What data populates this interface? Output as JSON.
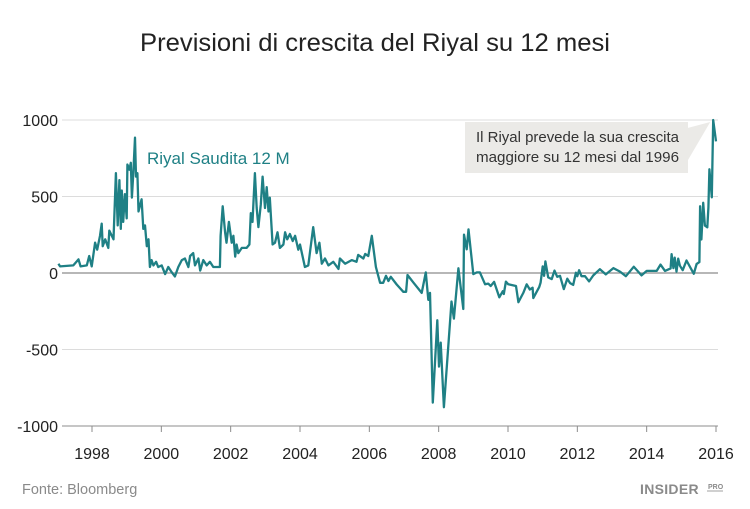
{
  "chart_data": {
    "type": "line",
    "title": "Previsioni di crescita del Riyal su 12 mesi",
    "xlabel": "",
    "ylabel": "",
    "xlim": [
      1997.0,
      2016.05
    ],
    "ylim": [
      -1000,
      1000
    ],
    "x_ticks": [
      1998,
      2000,
      2002,
      2004,
      2006,
      2008,
      2010,
      2012,
      2014,
      2016
    ],
    "x_tick_labels": [
      "1998",
      "2000",
      "2002",
      "2004",
      "2006",
      "2008",
      "2010",
      "2012",
      "2014",
      "2016"
    ],
    "y_ticks": [
      1000,
      500,
      0,
      -500,
      -1000
    ],
    "y_tick_labels": [
      "1000",
      "500",
      "0",
      "-500",
      "-1000"
    ],
    "grid": "horizontal",
    "series": [
      {
        "name": "Riyal Saudita 12 M",
        "color": "#1f8085",
        "points": [
          [
            1997.03,
            61
          ],
          [
            1997.08,
            43
          ],
          [
            1997.46,
            50
          ],
          [
            1997.61,
            89
          ],
          [
            1997.67,
            43
          ],
          [
            1997.85,
            50
          ],
          [
            1997.92,
            111
          ],
          [
            1997.99,
            43
          ],
          [
            1998.09,
            198
          ],
          [
            1998.15,
            152
          ],
          [
            1998.23,
            243
          ],
          [
            1998.28,
            323
          ],
          [
            1998.31,
            175
          ],
          [
            1998.38,
            220
          ],
          [
            1998.47,
            164
          ],
          [
            1998.5,
            277
          ],
          [
            1998.62,
            220
          ],
          [
            1998.69,
            652
          ],
          [
            1998.74,
            311
          ],
          [
            1998.79,
            607
          ],
          [
            1998.83,
            289
          ],
          [
            1998.86,
            539
          ],
          [
            1998.9,
            334
          ],
          [
            1998.95,
            516
          ],
          [
            1999.0,
            357
          ],
          [
            1999.02,
            709
          ],
          [
            1999.08,
            675
          ],
          [
            1999.12,
            720
          ],
          [
            1999.15,
            493
          ],
          [
            1999.19,
            652
          ],
          [
            1999.24,
            884
          ],
          [
            1999.27,
            630
          ],
          [
            1999.31,
            652
          ],
          [
            1999.34,
            402
          ],
          [
            1999.43,
            482
          ],
          [
            1999.48,
            289
          ],
          [
            1999.53,
            311
          ],
          [
            1999.58,
            175
          ],
          [
            1999.63,
            220
          ],
          [
            1999.67,
            39
          ],
          [
            1999.72,
            84
          ],
          [
            1999.77,
            50
          ],
          [
            1999.85,
            73
          ],
          [
            1999.91,
            39
          ],
          [
            2000.01,
            50
          ],
          [
            2000.11,
            -7
          ],
          [
            2000.2,
            39
          ],
          [
            2000.3,
            5
          ],
          [
            2000.39,
            -23
          ],
          [
            2000.49,
            39
          ],
          [
            2000.59,
            84
          ],
          [
            2000.68,
            95
          ],
          [
            2000.78,
            39
          ],
          [
            2000.83,
            111
          ],
          [
            2000.92,
            130
          ],
          [
            2000.97,
            50
          ],
          [
            2001.07,
            95
          ],
          [
            2001.12,
            16
          ],
          [
            2001.21,
            84
          ],
          [
            2001.31,
            50
          ],
          [
            2001.4,
            73
          ],
          [
            2001.5,
            39
          ],
          [
            2001.69,
            39
          ],
          [
            2001.71,
            243
          ],
          [
            2001.77,
            436
          ],
          [
            2001.84,
            266
          ],
          [
            2001.88,
            198
          ],
          [
            2001.95,
            334
          ],
          [
            2002.03,
            198
          ],
          [
            2002.08,
            243
          ],
          [
            2002.13,
            107
          ],
          [
            2002.17,
            186
          ],
          [
            2002.22,
            130
          ],
          [
            2002.32,
            164
          ],
          [
            2002.46,
            164
          ],
          [
            2002.54,
            186
          ],
          [
            2002.58,
            391
          ],
          [
            2002.63,
            334
          ],
          [
            2002.7,
            652
          ],
          [
            2002.75,
            425
          ],
          [
            2002.8,
            300
          ],
          [
            2002.87,
            448
          ],
          [
            2002.92,
            630
          ],
          [
            2002.99,
            425
          ],
          [
            2003.04,
            561
          ],
          [
            2003.09,
            402
          ],
          [
            2003.13,
            493
          ],
          [
            2003.21,
            186
          ],
          [
            2003.28,
            198
          ],
          [
            2003.35,
            266
          ],
          [
            2003.42,
            164
          ],
          [
            2003.52,
            186
          ],
          [
            2003.57,
            266
          ],
          [
            2003.63,
            220
          ],
          [
            2003.71,
            255
          ],
          [
            2003.79,
            209
          ],
          [
            2003.86,
            243
          ],
          [
            2003.95,
            152
          ],
          [
            2004.0,
            186
          ],
          [
            2004.14,
            39
          ],
          [
            2004.24,
            50
          ],
          [
            2004.38,
            300
          ],
          [
            2004.48,
            130
          ],
          [
            2004.56,
            198
          ],
          [
            2004.63,
            61
          ],
          [
            2004.72,
            95
          ],
          [
            2004.82,
            50
          ],
          [
            2004.96,
            73
          ],
          [
            2005.11,
            27
          ],
          [
            2005.15,
            95
          ],
          [
            2005.3,
            61
          ],
          [
            2005.49,
            84
          ],
          [
            2005.63,
            73
          ],
          [
            2005.68,
            118
          ],
          [
            2005.83,
            95
          ],
          [
            2005.88,
            125
          ],
          [
            2005.97,
            111
          ],
          [
            2006.07,
            243
          ],
          [
            2006.19,
            39
          ],
          [
            2006.31,
            -64
          ],
          [
            2006.4,
            -64
          ],
          [
            2006.48,
            -18
          ],
          [
            2006.55,
            -52
          ],
          [
            2006.62,
            -25
          ],
          [
            2006.79,
            -75
          ],
          [
            2006.98,
            -123
          ],
          [
            2007.06,
            -123
          ],
          [
            2007.1,
            -13
          ],
          [
            2007.27,
            -63
          ],
          [
            2007.51,
            -130
          ],
          [
            2007.63,
            4
          ],
          [
            2007.7,
            -175
          ],
          [
            2007.75,
            -130
          ],
          [
            2007.83,
            -847
          ],
          [
            2007.96,
            -309
          ],
          [
            2008.01,
            -612
          ],
          [
            2008.06,
            -455
          ],
          [
            2008.15,
            -877
          ],
          [
            2008.37,
            -186
          ],
          [
            2008.44,
            -298
          ],
          [
            2008.57,
            31
          ],
          [
            2008.71,
            -235
          ],
          [
            2008.73,
            251
          ],
          [
            2008.81,
            155
          ],
          [
            2008.86,
            285
          ],
          [
            2009.0,
            -7
          ],
          [
            2009.1,
            4
          ],
          [
            2009.19,
            4
          ],
          [
            2009.34,
            -74
          ],
          [
            2009.43,
            -69
          ],
          [
            2009.5,
            -85
          ],
          [
            2009.6,
            -58
          ],
          [
            2009.75,
            -159
          ],
          [
            2009.85,
            -119
          ],
          [
            2009.88,
            -137
          ],
          [
            2009.94,
            -56
          ],
          [
            2010.01,
            -74
          ],
          [
            2010.23,
            -85
          ],
          [
            2010.3,
            -191
          ],
          [
            2010.44,
            -130
          ],
          [
            2010.54,
            -74
          ],
          [
            2010.63,
            -108
          ],
          [
            2010.71,
            -96
          ],
          [
            2010.73,
            -164
          ],
          [
            2010.9,
            -92
          ],
          [
            2010.94,
            -63
          ],
          [
            2011.0,
            43
          ],
          [
            2011.04,
            -18
          ],
          [
            2011.08,
            76
          ],
          [
            2011.16,
            -29
          ],
          [
            2011.26,
            -40
          ],
          [
            2011.34,
            16
          ],
          [
            2011.42,
            -25
          ],
          [
            2011.5,
            -18
          ],
          [
            2011.61,
            -105
          ],
          [
            2011.71,
            -37
          ],
          [
            2011.79,
            -66
          ],
          [
            2011.88,
            -78
          ],
          [
            2011.96,
            2
          ],
          [
            2012.0,
            -21
          ],
          [
            2012.05,
            18
          ],
          [
            2012.12,
            -21
          ],
          [
            2012.22,
            -21
          ],
          [
            2012.34,
            -55
          ],
          [
            2012.46,
            -16
          ],
          [
            2012.65,
            25
          ],
          [
            2012.82,
            -9
          ],
          [
            2013.04,
            32
          ],
          [
            2013.23,
            9
          ],
          [
            2013.4,
            -21
          ],
          [
            2013.63,
            41
          ],
          [
            2013.85,
            -16
          ],
          [
            2014.0,
            14
          ],
          [
            2014.29,
            14
          ],
          [
            2014.4,
            55
          ],
          [
            2014.53,
            14
          ],
          [
            2014.69,
            30
          ],
          [
            2014.72,
            123
          ],
          [
            2014.77,
            32
          ],
          [
            2014.81,
            100
          ],
          [
            2014.86,
            9
          ],
          [
            2014.91,
            94
          ],
          [
            2014.96,
            48
          ],
          [
            2015.04,
            18
          ],
          [
            2015.15,
            82
          ],
          [
            2015.36,
            -5
          ],
          [
            2015.44,
            59
          ],
          [
            2015.52,
            71
          ],
          [
            2015.54,
            436
          ],
          [
            2015.58,
            219
          ],
          [
            2015.63,
            459
          ],
          [
            2015.68,
            310
          ],
          [
            2015.75,
            299
          ],
          [
            2015.78,
            427
          ],
          [
            2015.81,
            678
          ],
          [
            2015.88,
            495
          ],
          [
            2015.92,
            1000
          ],
          [
            2016.0,
            860
          ]
        ]
      }
    ],
    "series_label": "Riyal Saudita 12 M",
    "annotation": {
      "lines": [
        "Il Riyal prevede la sua crescita",
        "maggiore su 12 mesi dal 1996"
      ],
      "target": [
        2015.92,
        1000
      ]
    },
    "source": "Fonte: Bloomberg",
    "logo": {
      "main": "INSIDER",
      "sub": "PRO"
    }
  },
  "colors": {
    "line": "#1f8085",
    "grid": "#dcdcdc",
    "zero_line": "#8c8c8c",
    "annotation_bg": "#ebeae7",
    "text": "#222222",
    "muted": "#8a8a8a"
  }
}
